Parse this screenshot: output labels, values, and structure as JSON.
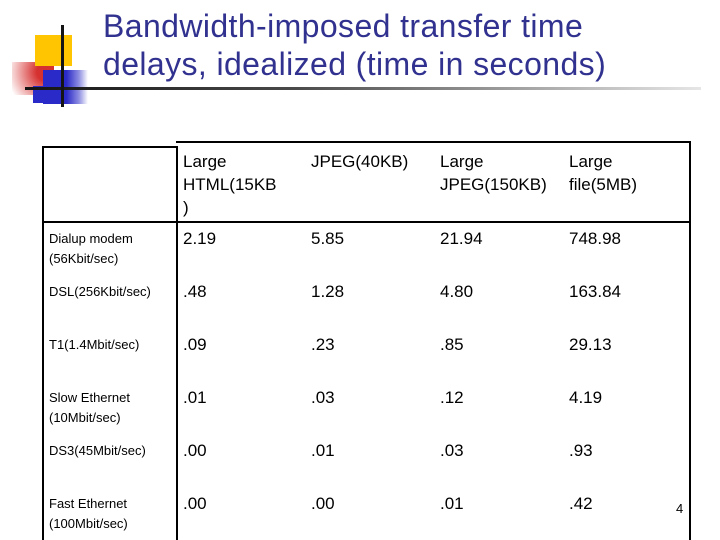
{
  "slide": {
    "title_lines": [
      "Bandwidth-imposed transfer time",
      "delays, idealized (time in seconds)"
    ],
    "title_color": "#31318f",
    "page_number": "4",
    "ornament_colors": {
      "yellow": "#ffc500",
      "red": "#d63131",
      "blue": "#2a2ac8",
      "line": "#141414"
    }
  },
  "table": {
    "col_headers": [
      "",
      "Large\nHTML(15KB\n)",
      "JPEG(40KB)",
      "Large\nJPEG(150KB)",
      "Large\nfile(5MB)"
    ],
    "rows": [
      {
        "label": "Dialup modem\n(56Kbit/sec)",
        "values": [
          "2.19",
          "5.85",
          "21.94",
          "748.98"
        ]
      },
      {
        "label": "DSL(256Kbit/sec)",
        "values": [
          ".48",
          "1.28",
          "4.80",
          "163.84"
        ]
      },
      {
        "label": "T1(1.4Mbit/sec)",
        "values": [
          ".09",
          ".23",
          ".85",
          "29.13"
        ]
      },
      {
        "label": "Slow Ethernet\n(10Mbit/sec)",
        "values": [
          ".01",
          ".03",
          ".12",
          "4.19"
        ]
      },
      {
        "label": "DS3(45Mbit/sec)",
        "values": [
          ".00",
          ".01",
          ".03",
          ".93"
        ]
      },
      {
        "label": "Fast Ethernet\n(100Mbit/sec)",
        "values": [
          ".00",
          ".00",
          ".01",
          ".42"
        ]
      }
    ]
  }
}
